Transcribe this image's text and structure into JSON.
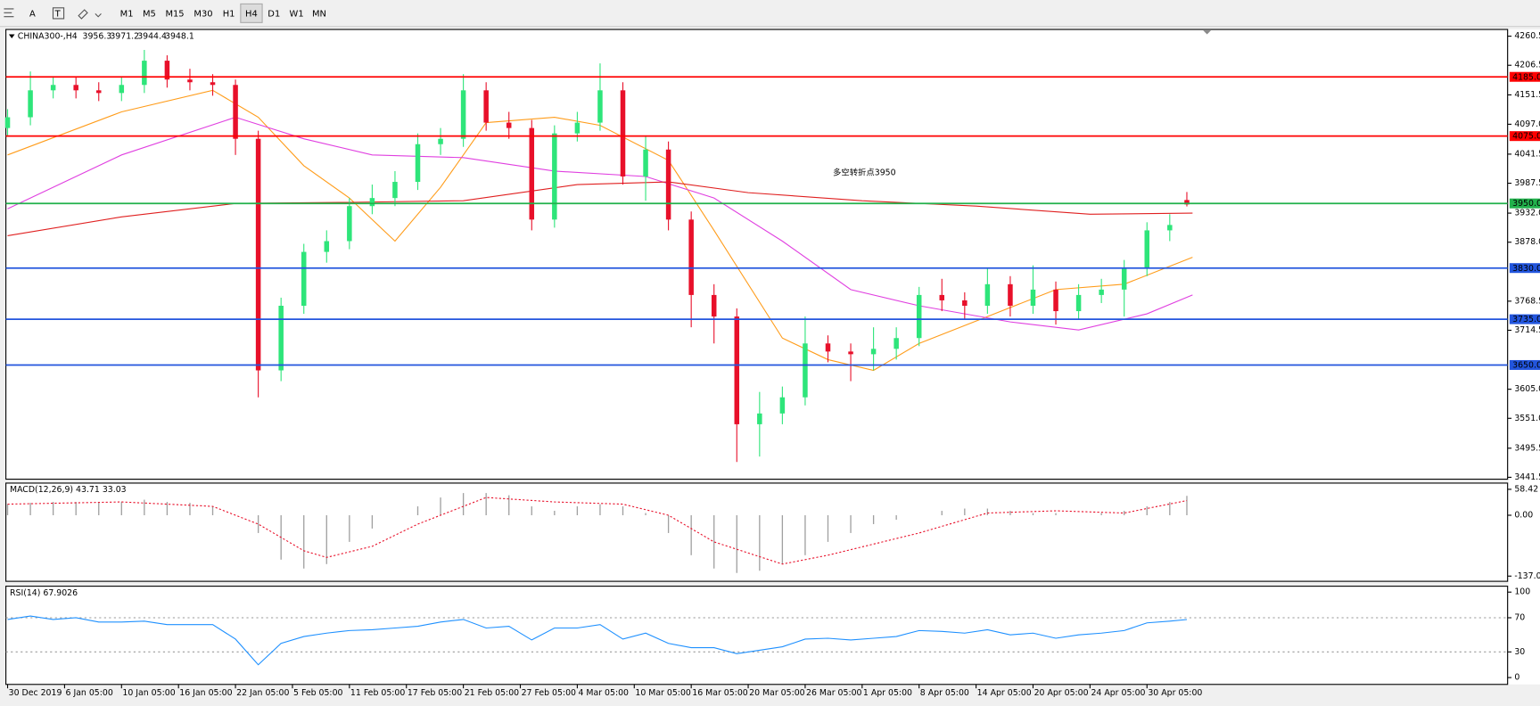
{
  "toolbar": {
    "tools": [
      "A",
      "T"
    ],
    "timeframes": [
      "M1",
      "M5",
      "M15",
      "M30",
      "H1",
      "H4",
      "D1",
      "W1",
      "MN"
    ],
    "active": "H4"
  },
  "chart_data": [
    {
      "type": "candlestick",
      "title": "CHINA300-,H4",
      "header_values": [
        3956.3,
        3971.2,
        3944.4,
        3948.1
      ],
      "annotation": "多空转折点3950",
      "annotation_color": "#e8102a",
      "up_color": "#2ee57a",
      "down_color": "#e8102a",
      "xlim": [
        -0.3,
        263.3
      ],
      "ylim": [
        3438,
        4273
      ],
      "yticks": [
        4260.5,
        4206.5,
        4151.5,
        {
          "value": 4097,
          "label": "4097.0"
        },
        4041.5,
        3987.5,
        {
          "value": 3932,
          "label": "3932.0"
        },
        {
          "value": 3878,
          "label": "3878.0"
        },
        3768.5,
        3714.5,
        {
          "value": 3605,
          "label": "3605.0"
        },
        {
          "value": 3551,
          "label": "3551.0"
        },
        3495.5,
        3441.5
      ],
      "levels": [
        {
          "value": 4185,
          "label": "4185.0",
          "color": "#ff0000"
        },
        {
          "value": 4075,
          "label": "4075.0",
          "color": "#ff0000"
        },
        {
          "value": 3950,
          "label": "3950.0",
          "color": "#22b14c"
        },
        {
          "value": 3830,
          "label": "3830.0",
          "color": "#2255dd"
        },
        {
          "value": 3735,
          "label": "3735.0",
          "color": "#2255dd"
        },
        {
          "value": 3650,
          "label": "3650.0",
          "color": "#2255dd"
        }
      ],
      "x": [
        0,
        4,
        8,
        12,
        16,
        20,
        24,
        28,
        32,
        36,
        40,
        44,
        48,
        52,
        56,
        60,
        64,
        68,
        72,
        76,
        80,
        84,
        88,
        92,
        96,
        100,
        104,
        108,
        112,
        116,
        120,
        124,
        128,
        132,
        136,
        140,
        144,
        148,
        152,
        156,
        160,
        164,
        168,
        172,
        176,
        180,
        184,
        188,
        192,
        196,
        200,
        204,
        207
      ],
      "open": [
        4090,
        4110,
        4160,
        4170,
        4160,
        4155,
        4170,
        4215,
        4180,
        4175,
        4170,
        4070,
        3640,
        3760,
        3860,
        3880,
        3945,
        3960,
        3990,
        4060,
        4070,
        4160,
        4100,
        4090,
        3920,
        4080,
        4100,
        4160,
        4000,
        4050,
        3920,
        3780,
        3740,
        3540,
        3560,
        3590,
        3690,
        3675,
        3670,
        3680,
        3700,
        3780,
        3770,
        3760,
        3800,
        3760,
        3790,
        3750,
        3780,
        3790,
        3830,
        3900,
        3956.3
      ],
      "high": [
        4125,
        4195,
        4185,
        4185,
        4175,
        4185,
        4235,
        4225,
        4200,
        4190,
        4180,
        4085,
        3775,
        3875,
        3900,
        3960,
        3985,
        4010,
        4080,
        4090,
        4190,
        4175,
        4120,
        4105,
        4095,
        4120,
        4210,
        4175,
        4075,
        4065,
        3935,
        3800,
        3755,
        3600,
        3610,
        3740,
        3705,
        3690,
        3720,
        3720,
        3795,
        3810,
        3785,
        3830,
        3815,
        3835,
        3805,
        3800,
        3810,
        3845,
        3915,
        3930,
        3971.2
      ],
      "low": [
        4075,
        4095,
        4145,
        4145,
        4140,
        4140,
        4155,
        4165,
        4160,
        4150,
        4040,
        3590,
        3620,
        3745,
        3840,
        3865,
        3930,
        3945,
        3975,
        4040,
        4055,
        4085,
        4070,
        3900,
        3905,
        4065,
        4085,
        3985,
        3955,
        3900,
        3720,
        3690,
        3470,
        3480,
        3540,
        3575,
        3655,
        3620,
        3640,
        3660,
        3685,
        3750,
        3735,
        3745,
        3740,
        3745,
        3725,
        3735,
        3765,
        3740,
        3815,
        3880,
        3944.4
      ],
      "close": [
        4110,
        4160,
        4170,
        4160,
        4155,
        4170,
        4215,
        4180,
        4175,
        4170,
        4070,
        3640,
        3760,
        3860,
        3880,
        3945,
        3960,
        3990,
        4060,
        4070,
        4160,
        4100,
        4090,
        3920,
        4080,
        4100,
        4160,
        4000,
        4050,
        3920,
        3780,
        3740,
        3540,
        3560,
        3590,
        3690,
        3675,
        3670,
        3680,
        3700,
        3780,
        3770,
        3760,
        3800,
        3760,
        3790,
        3750,
        3780,
        3790,
        3830,
        3900,
        3910,
        3948.1
      ],
      "lines": [
        {
          "color": "#ff9c1a",
          "x": [
            0,
            20,
            36,
            44,
            52,
            60,
            68,
            76,
            84,
            96,
            104,
            116,
            124,
            136,
            144,
            152,
            160,
            172,
            184,
            196,
            208
          ],
          "values": [
            4040,
            4120,
            4160,
            4110,
            4020,
            3960,
            3880,
            3980,
            4100,
            4110,
            4095,
            4030,
            3900,
            3700,
            3660,
            3640,
            3690,
            3740,
            3790,
            3800,
            3850
          ]
        },
        {
          "color": "#e040e0",
          "x": [
            0,
            20,
            40,
            52,
            64,
            80,
            96,
            112,
            124,
            136,
            148,
            160,
            176,
            188,
            200,
            208
          ],
          "values": [
            3940,
            4040,
            4110,
            4070,
            4040,
            4035,
            4010,
            4000,
            3960,
            3880,
            3790,
            3760,
            3730,
            3715,
            3745,
            3780
          ]
        },
        {
          "color": "#e02020",
          "x": [
            0,
            20,
            40,
            60,
            80,
            100,
            116,
            130,
            150,
            170,
            190,
            208
          ],
          "values": [
            3890,
            3925,
            3950,
            3952,
            3955,
            3985,
            3990,
            3970,
            3955,
            3945,
            3930,
            3932
          ]
        }
      ]
    },
    {
      "type": "macd",
      "title": "MACD(12,26,9) 43.71 33.03",
      "xlim": [
        -0.3,
        263.3
      ],
      "ylim": [
        -148.8,
        72.4
      ],
      "yticks": [
        58.42,
        {
          "value": 0,
          "label": "0.00"
        },
        -137.09
      ],
      "histogram": {
        "color": "#a0a0a0",
        "x": [
          0,
          4,
          8,
          12,
          16,
          20,
          24,
          28,
          32,
          36,
          40,
          44,
          48,
          52,
          56,
          60,
          64,
          68,
          72,
          76,
          80,
          84,
          88,
          92,
          96,
          100,
          104,
          108,
          112,
          116,
          120,
          124,
          128,
          132,
          136,
          140,
          144,
          148,
          152,
          156,
          160,
          164,
          168,
          172,
          176,
          180,
          184,
          188,
          192,
          196,
          200,
          204,
          207
        ],
        "values": [
          25,
          28,
          30,
          30,
          28,
          30,
          35,
          30,
          28,
          20,
          0,
          -40,
          -100,
          -120,
          -110,
          -60,
          -30,
          0,
          20,
          40,
          50,
          50,
          45,
          20,
          10,
          20,
          25,
          20,
          5,
          -40,
          -90,
          -120,
          -130,
          -125,
          -110,
          -90,
          -60,
          -40,
          -20,
          -10,
          0,
          10,
          15,
          15,
          10,
          5,
          5,
          0,
          5,
          10,
          20,
          30,
          43.71
        ]
      },
      "signal": {
        "color": "#e8102a",
        "x": [
          0,
          20,
          36,
          44,
          52,
          56,
          64,
          72,
          84,
          96,
          108,
          116,
          124,
          136,
          144,
          160,
          172,
          184,
          196,
          207
        ],
        "values": [
          25,
          30,
          20,
          -20,
          -80,
          -95,
          -70,
          -20,
          40,
          30,
          25,
          0,
          -60,
          -110,
          -90,
          -40,
          5,
          10,
          5,
          33.03
        ]
      }
    },
    {
      "type": "line",
      "title": "RSI(14) 67.9026",
      "xlim": [
        -0.3,
        263.3
      ],
      "ylim": [
        -8,
        106.9
      ],
      "yticks": [
        100,
        70,
        30,
        0
      ],
      "levels": [
        70,
        30
      ],
      "color": "#1e90ff",
      "x": [
        0,
        4,
        8,
        12,
        16,
        20,
        24,
        28,
        32,
        36,
        40,
        44,
        48,
        52,
        56,
        60,
        64,
        68,
        72,
        76,
        80,
        84,
        88,
        92,
        96,
        100,
        104,
        108,
        112,
        116,
        120,
        124,
        128,
        132,
        136,
        140,
        144,
        148,
        152,
        156,
        160,
        164,
        168,
        172,
        176,
        180,
        184,
        188,
        192,
        196,
        200,
        204,
        207
      ],
      "values": [
        68,
        72,
        68,
        70,
        65,
        65,
        66,
        62,
        62,
        62,
        45,
        15,
        40,
        48,
        52,
        55,
        56,
        58,
        60,
        65,
        68,
        58,
        60,
        44,
        58,
        58,
        62,
        45,
        52,
        40,
        35,
        35,
        28,
        32,
        36,
        45,
        46,
        44,
        46,
        48,
        55,
        54,
        52,
        56,
        50,
        52,
        46,
        50,
        52,
        55,
        64,
        66,
        67.9026
      ],
      "xticks": [
        {
          "value": 0,
          "label": "30 Dec 2019"
        },
        {
          "value": 10,
          "label": "6 Jan 05:00"
        },
        {
          "value": 20,
          "label": "10 Jan 05:00"
        },
        {
          "value": 30,
          "label": "16 Jan 05:00"
        },
        {
          "value": 40,
          "label": "22 Jan 05:00"
        },
        {
          "value": 50,
          "label": "5 Feb 05:00"
        },
        {
          "value": 60,
          "label": "11 Feb 05:00"
        },
        {
          "value": 70,
          "label": "17 Feb 05:00"
        },
        {
          "value": 80,
          "label": "21 Feb 05:00"
        },
        {
          "value": 90,
          "label": "27 Feb 05:00"
        },
        {
          "value": 100,
          "label": "4 Mar 05:00"
        },
        {
          "value": 110,
          "label": "10 Mar 05:00"
        },
        {
          "value": 120,
          "label": "16 Mar 05:00"
        },
        {
          "value": 130,
          "label": "20 Mar 05:00"
        },
        {
          "value": 140,
          "label": "26 Mar 05:00"
        },
        {
          "value": 150,
          "label": "1 Apr 05:00"
        },
        {
          "value": 160,
          "label": "8 Apr 05:00"
        },
        {
          "value": 170,
          "label": "14 Apr 05:00"
        },
        {
          "value": 180,
          "label": "20 Apr 05:00"
        },
        {
          "value": 190,
          "label": "24 Apr 05:00"
        },
        {
          "value": 200,
          "label": "30 Apr 05:00"
        }
      ]
    }
  ]
}
